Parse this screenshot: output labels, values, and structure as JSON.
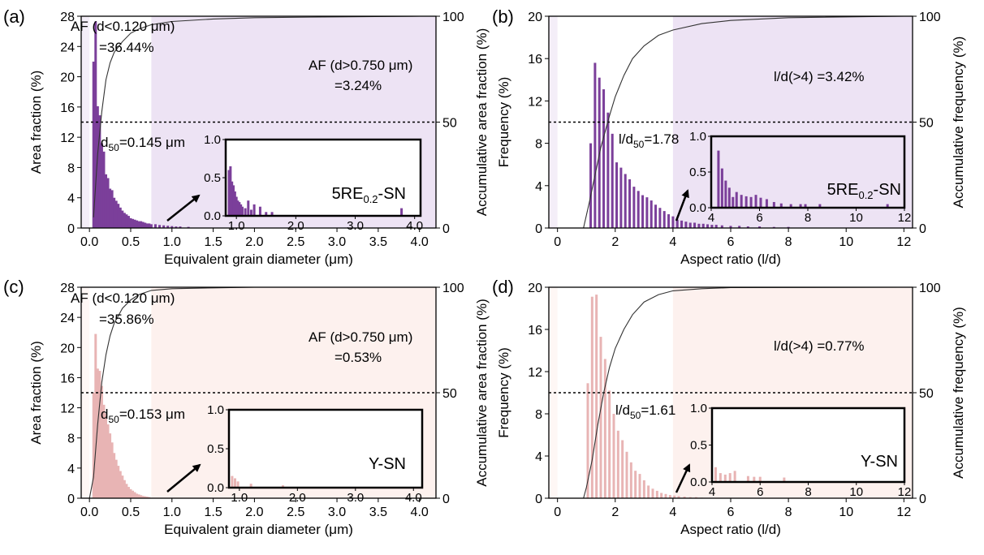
{
  "chart_data": [
    {
      "type": "bar",
      "panel_label": "(a)",
      "sample_label": "5RE",
      "sample_sub": "0.2",
      "sample_suffix": "-SN",
      "xlabel": "Equivalent grain diameter (μm)",
      "ylabel": "Area fraction (%)",
      "y2label": "Accumulative area fraction (%)",
      "xlim": [
        -0.1,
        4.2
      ],
      "ylim": [
        0,
        28
      ],
      "y2lim": [
        0,
        100
      ],
      "xticks": [
        0.0,
        0.5,
        1.0,
        1.5,
        2.0,
        2.5,
        3.0,
        3.5,
        4.0
      ],
      "xtick_labels": [
        "0.0",
        "0.5",
        "1.0",
        "1.5",
        "2.0",
        "2.5",
        "3.0",
        "3.5",
        "4.0"
      ],
      "yticks": [
        0,
        4,
        8,
        12,
        16,
        20,
        24,
        28
      ],
      "ytick_labels": [
        "0",
        "4",
        "8",
        "12",
        "16",
        "20",
        "24",
        "28"
      ],
      "y2ticks": [
        0,
        50,
        100
      ],
      "y2tick_labels": [
        "0",
        "50",
        "100"
      ],
      "bar_color": "#7b3f9a",
      "shade_color": "#ede3f4",
      "shade_from": 0.75,
      "dashed_y2": 50,
      "bin_width": 0.025,
      "x": [
        0.05,
        0.075,
        0.1,
        0.125,
        0.15,
        0.175,
        0.2,
        0.225,
        0.25,
        0.275,
        0.3,
        0.325,
        0.35,
        0.375,
        0.4,
        0.425,
        0.45,
        0.475,
        0.5,
        0.525,
        0.55,
        0.575,
        0.6,
        0.625,
        0.65,
        0.675,
        0.7,
        0.725,
        0.75,
        0.8,
        0.85,
        0.9,
        0.95,
        1.0,
        1.05,
        1.1,
        1.2
      ],
      "values": [
        22.0,
        27.3,
        16.1,
        14.9,
        11.2,
        10.1,
        7.1,
        6.6,
        5.2,
        5.0,
        4.0,
        3.6,
        3.2,
        2.7,
        2.3,
        2.0,
        1.8,
        1.6,
        1.3,
        1.2,
        1.1,
        1.0,
        0.9,
        0.9,
        0.8,
        0.7,
        0.6,
        0.6,
        0.5,
        0.5,
        0.4,
        0.35,
        0.3,
        0.25,
        0.2,
        0.2,
        0.15
      ],
      "cumulative_x": [
        0.05,
        0.1,
        0.15,
        0.2,
        0.25,
        0.3,
        0.4,
        0.5,
        0.6,
        0.75,
        1.0,
        1.5,
        2.0,
        3.0,
        4.0
      ],
      "cumulative_y": [
        5,
        35,
        55,
        70,
        78,
        83,
        88,
        92,
        94,
        96,
        97.5,
        98.7,
        99.3,
        99.7,
        100
      ],
      "annotations": {
        "af_small_1": "AF (d<0.120 μm)",
        "af_small_2": "=36.44%",
        "af_large_1": "AF (d>0.750 μm)",
        "af_large_2": "=3.24%",
        "d50_prefix": "d",
        "d50_sub": "50",
        "d50_value": "=0.145 μm"
      },
      "inset": {
        "xlim": [
          0.82,
          4.1
        ],
        "ylim": [
          0,
          1.0
        ],
        "xticks": [
          1.0,
          2.0,
          3.0,
          4.0
        ],
        "xtick_labels": [
          "1.0",
          "2.0",
          "3.0",
          "4.0"
        ],
        "yticks": [
          0.0,
          0.5,
          1.0
        ],
        "ytick_labels": [
          "0.0",
          "0.5",
          "1.0"
        ],
        "x": [
          0.875,
          0.9,
          0.925,
          0.95,
          0.975,
          1.0,
          1.025,
          1.05,
          1.075,
          1.1,
          1.15,
          1.2,
          1.25,
          1.3,
          1.4,
          1.5,
          1.6,
          3.78
        ],
        "values": [
          0.6,
          0.65,
          0.45,
          0.4,
          0.32,
          0.25,
          0.2,
          0.18,
          0.15,
          0.12,
          0.1,
          0.2,
          0.08,
          0.15,
          0.12,
          0.05,
          0.05,
          0.1
        ]
      }
    },
    {
      "type": "bar",
      "panel_label": "(b)",
      "sample_label": "5RE",
      "sample_sub": "0.2",
      "sample_suffix": "-SN",
      "xlabel": "Aspect ratio (l/d)",
      "ylabel": "Frequency (%)",
      "y2label": "Accumulative frequency (%)",
      "xlim": [
        -0.3,
        12.3
      ],
      "ylim": [
        0,
        20
      ],
      "y2lim": [
        0,
        100
      ],
      "xticks": [
        0,
        2,
        4,
        6,
        8,
        10,
        12
      ],
      "xtick_labels": [
        "0",
        "2",
        "4",
        "6",
        "8",
        "10",
        "12"
      ],
      "yticks": [
        0,
        4,
        8,
        12,
        16,
        20
      ],
      "ytick_labels": [
        "0",
        "4",
        "8",
        "12",
        "16",
        "20"
      ],
      "y2ticks": [
        0,
        50,
        100
      ],
      "y2tick_labels": [
        "0",
        "50",
        "100"
      ],
      "bar_color": "#7b3f9a",
      "shade_color": "#ede3f4",
      "shade_from": 4.0,
      "dashed_y2": 50,
      "bin_width": 0.1,
      "x": [
        1.15,
        1.3,
        1.45,
        1.6,
        1.75,
        1.9,
        2.05,
        2.2,
        2.35,
        2.5,
        2.65,
        2.8,
        2.95,
        3.1,
        3.25,
        3.4,
        3.55,
        3.7,
        3.85,
        4.0,
        4.15,
        4.3,
        4.45,
        4.6,
        4.75,
        4.9,
        5.05,
        5.2,
        5.35,
        5.5,
        5.7,
        6.0,
        6.3,
        6.6,
        7.0,
        7.5,
        8.0
      ],
      "values": [
        8.0,
        15.6,
        14.2,
        13.1,
        10.9,
        8.9,
        6.2,
        5.7,
        5.1,
        4.6,
        3.9,
        3.5,
        3.1,
        2.9,
        2.6,
        2.2,
        1.9,
        1.6,
        1.3,
        1.1,
        0.8,
        0.7,
        0.6,
        0.5,
        0.5,
        0.4,
        0.4,
        0.35,
        0.3,
        0.3,
        0.25,
        0.2,
        0.2,
        0.15,
        0.15,
        0.1,
        0.1
      ],
      "cumulative_x": [
        0.9,
        1.1,
        1.3,
        1.5,
        1.8,
        2.0,
        2.3,
        2.6,
        3.0,
        3.5,
        4.0,
        5.0,
        6.0,
        8.0,
        12.0
      ],
      "cumulative_y": [
        0,
        12,
        25,
        38,
        53,
        62,
        72,
        80,
        86,
        91,
        93.5,
        96.5,
        98,
        99.3,
        100
      ],
      "annotations": {
        "stat_prefix": "l/d",
        "stat_sub": "50",
        "stat_value": "=1.78",
        "tail_label": "l/d(>4) =3.42%"
      },
      "inset": {
        "xlim": [
          4,
          12
        ],
        "ylim": [
          0,
          1.0
        ],
        "xticks": [
          4,
          6,
          8,
          10,
          12
        ],
        "xtick_labels": [
          "4",
          "6",
          "8",
          "10",
          "12"
        ],
        "yticks": [
          0.0,
          0.5,
          1.0
        ],
        "ytick_labels": [
          "0.0",
          "0.5",
          "1.0"
        ],
        "x": [
          4.3,
          4.45,
          4.6,
          4.75,
          4.9,
          5.05,
          5.25,
          5.45,
          5.65,
          5.85,
          6.05,
          6.3,
          6.6,
          6.9,
          7.3,
          7.7,
          7.9,
          8.5,
          11.3
        ],
        "values": [
          0.8,
          0.55,
          0.38,
          0.28,
          0.15,
          0.22,
          0.18,
          0.16,
          0.15,
          0.18,
          0.14,
          0.12,
          0.08,
          0.06,
          0.05,
          0.05,
          0.05,
          0.05,
          0.05
        ]
      }
    },
    {
      "type": "bar",
      "panel_label": "(c)",
      "sample_label": "Y-SN",
      "sample_sub": "",
      "sample_suffix": "",
      "xlabel": "Equivalent grain diameter (μm)",
      "ylabel": "Area fraction (%)",
      "y2label": "Accumulative area fraction (%)",
      "xlim": [
        -0.1,
        4.2
      ],
      "ylim": [
        0,
        28
      ],
      "y2lim": [
        0,
        100
      ],
      "xticks": [
        0.0,
        0.5,
        1.0,
        1.5,
        2.0,
        2.5,
        3.0,
        3.5,
        4.0
      ],
      "xtick_labels": [
        "0.0",
        "0.5",
        "1.0",
        "1.5",
        "2.0",
        "2.5",
        "3.0",
        "3.5",
        "4.0"
      ],
      "yticks": [
        0,
        4,
        8,
        12,
        16,
        20,
        24,
        28
      ],
      "ytick_labels": [
        "0",
        "4",
        "8",
        "12",
        "16",
        "20",
        "24",
        "28"
      ],
      "y2ticks": [
        0,
        50,
        100
      ],
      "y2tick_labels": [
        "0",
        "50",
        "100"
      ],
      "bar_color": "#e8b4b4",
      "shade_color": "#fdf1ee",
      "shade_from": 0.75,
      "dashed_y2": 50,
      "bin_width": 0.025,
      "x": [
        0.05,
        0.075,
        0.1,
        0.125,
        0.15,
        0.175,
        0.2,
        0.225,
        0.25,
        0.275,
        0.3,
        0.325,
        0.35,
        0.375,
        0.4,
        0.425,
        0.45,
        0.475,
        0.5,
        0.525,
        0.55,
        0.575,
        0.6,
        0.625,
        0.65,
        0.675,
        0.7,
        0.725
      ],
      "values": [
        14.0,
        21.8,
        17.2,
        16.9,
        14.9,
        12.4,
        11.2,
        9.8,
        8.6,
        7.4,
        6.0,
        5.1,
        4.3,
        3.6,
        3.0,
        2.4,
        1.9,
        1.5,
        1.2,
        1.0,
        0.8,
        0.6,
        0.5,
        0.4,
        0.3,
        0.25,
        0.2,
        0.15
      ],
      "cumulative_x": [
        0.0,
        0.05,
        0.1,
        0.15,
        0.2,
        0.25,
        0.3,
        0.4,
        0.5,
        0.6,
        0.75,
        1.0,
        1.5,
        2.0,
        4.0
      ],
      "cumulative_y": [
        0,
        10,
        35,
        55,
        68,
        77,
        83,
        90,
        94,
        96.5,
        98.5,
        99.3,
        99.7,
        100,
        100
      ],
      "annotations": {
        "af_small_1": "AF (d<0.120 μm)",
        "af_small_2": "=35.86%",
        "af_large_1": "AF (d>0.750 μm)",
        "af_large_2": "=0.53%",
        "d50_prefix": "d",
        "d50_sub": "50",
        "d50_value": "=0.153 μm"
      },
      "inset": {
        "xlim": [
          0.82,
          4.15
        ],
        "ylim": [
          0,
          1.0
        ],
        "xticks": [
          1.0,
          2.0,
          3.0,
          4.0
        ],
        "xtick_labels": [
          "1.0",
          "2.0",
          "3.0",
          "4.0"
        ],
        "yticks": [
          0.0,
          0.5,
          1.0
        ],
        "ytick_labels": [
          "0.0",
          "0.5",
          "1.0"
        ],
        "x": [
          0.875,
          0.925,
          0.975,
          1.2,
          1.75
        ],
        "values": [
          0.15,
          0.12,
          0.08,
          0.05,
          0.03
        ]
      }
    },
    {
      "type": "bar",
      "panel_label": "(d)",
      "sample_label": "Y-SN",
      "sample_sub": "",
      "sample_suffix": "",
      "xlabel": "Aspect ratio (l/d)",
      "ylabel": "Frequency (%)",
      "y2label": "Accumulative frequency (%)",
      "xlim": [
        -0.3,
        12.3
      ],
      "ylim": [
        0,
        20
      ],
      "y2lim": [
        0,
        100
      ],
      "xticks": [
        0,
        2,
        4,
        6,
        8,
        10,
        12
      ],
      "xtick_labels": [
        "0",
        "2",
        "4",
        "6",
        "8",
        "10",
        "12"
      ],
      "yticks": [
        0,
        4,
        8,
        12,
        16,
        20
      ],
      "ytick_labels": [
        "0",
        "4",
        "8",
        "12",
        "16",
        "20"
      ],
      "y2ticks": [
        0,
        50,
        100
      ],
      "y2tick_labels": [
        "0",
        "50",
        "100"
      ],
      "bar_color": "#e8b4b4",
      "shade_color": "#fdf1ee",
      "shade_from": 4.0,
      "dashed_y2": 50,
      "bin_width": 0.1,
      "x": [
        1.05,
        1.2,
        1.35,
        1.5,
        1.65,
        1.8,
        1.95,
        2.1,
        2.25,
        2.4,
        2.55,
        2.7,
        2.85,
        3.0,
        3.15,
        3.3,
        3.45,
        3.6,
        3.75,
        3.9,
        4.05,
        4.2,
        4.4,
        4.6,
        4.8,
        5.0
      ],
      "values": [
        10.9,
        19.1,
        19.3,
        15.3,
        13.2,
        10.2,
        8.0,
        6.4,
        5.5,
        4.4,
        3.4,
        2.6,
        2.3,
        1.7,
        1.2,
        0.9,
        0.7,
        0.5,
        0.4,
        0.3,
        0.25,
        0.2,
        0.15,
        0.1,
        0.1,
        0.05
      ],
      "cumulative_x": [
        0.9,
        1.0,
        1.2,
        1.4,
        1.6,
        1.8,
        2.0,
        2.3,
        2.6,
        3.0,
        3.5,
        4.0,
        5.0,
        6.0,
        12.0
      ],
      "cumulative_y": [
        0,
        5,
        18,
        35,
        50,
        62,
        71,
        80,
        87,
        93,
        96.5,
        98.3,
        99.3,
        99.8,
        100
      ],
      "annotations": {
        "stat_prefix": "l/d",
        "stat_sub": "50",
        "stat_value": "=1.61",
        "tail_label": "l/d(>4) =0.77%"
      },
      "inset": {
        "xlim": [
          4,
          12
        ],
        "ylim": [
          0,
          1.0
        ],
        "xticks": [
          4,
          6,
          8,
          10,
          12
        ],
        "xtick_labels": [
          "4",
          "6",
          "8",
          "10",
          "12"
        ],
        "yticks": [
          0.0,
          0.5,
          1.0
        ],
        "ytick_labels": [
          "0.0",
          "0.5",
          "1.0"
        ],
        "x": [
          4.15,
          4.35,
          4.55,
          4.75,
          4.95,
          5.5,
          5.75,
          6.0,
          7.0
        ],
        "values": [
          0.2,
          0.12,
          0.1,
          0.12,
          0.15,
          0.08,
          0.07,
          0.07,
          0.06
        ]
      }
    }
  ]
}
